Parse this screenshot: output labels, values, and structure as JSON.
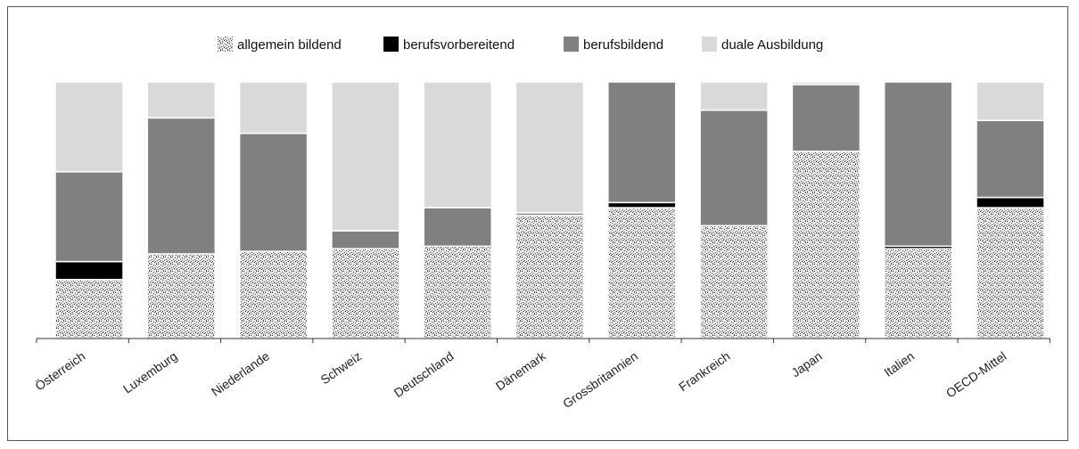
{
  "chart_data": {
    "type": "bar",
    "stacked": true,
    "percent_stacked": true,
    "title": "",
    "xlabel": "",
    "ylabel": "",
    "ylim": [
      0,
      100
    ],
    "grid": false,
    "legend_position": "top-center",
    "categories": [
      "Österreich",
      "Luxemburg",
      "Niederlande",
      "Schweiz",
      "Deutschland",
      "Dänemark",
      "Grossbritannien",
      "Frankreich",
      "Japan",
      "Italien",
      "OECD-Mittel"
    ],
    "series": [
      {
        "name": "allgemein bildend",
        "color": "#9a9a9a",
        "pattern": "speckled",
        "values": [
          23,
          33,
          34,
          35,
          36,
          48,
          51,
          44,
          73,
          35,
          51
        ]
      },
      {
        "name": "berufsvorbereitend",
        "color": "#000000",
        "values": [
          7,
          0,
          0,
          0,
          0,
          0,
          2,
          0,
          0,
          1,
          4
        ]
      },
      {
        "name": "berufsbildend",
        "color": "#808080",
        "values": [
          35,
          53,
          46,
          7,
          15,
          1,
          47,
          45,
          26,
          64,
          30
        ]
      },
      {
        "name": "duale Ausbildung",
        "color": "#d9d9d9",
        "values": [
          35,
          14,
          20,
          58,
          49,
          51,
          0,
          11,
          1,
          0,
          15
        ]
      }
    ]
  }
}
